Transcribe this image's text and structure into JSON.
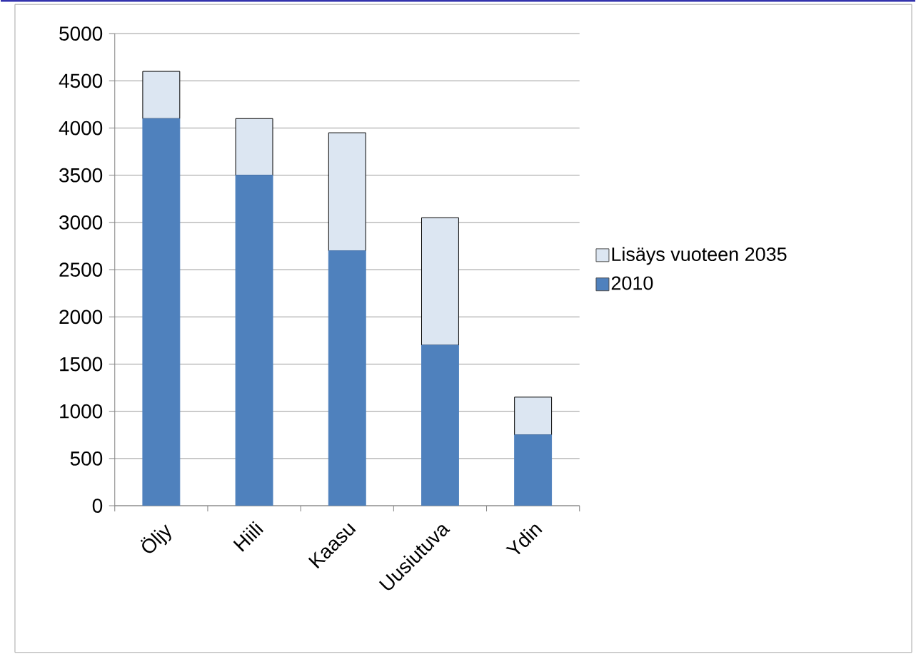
{
  "chart_data": {
    "type": "bar",
    "stacked": true,
    "categories": [
      "Öljy",
      "Hiili",
      "Kaasu",
      "Uusiutuva",
      "Ydin"
    ],
    "series": [
      {
        "name": "2010",
        "color": "#4f81bd",
        "values": [
          4100,
          3500,
          2700,
          1700,
          750
        ]
      },
      {
        "name": "Lisäys vuoteen  2035",
        "color": "#dce6f2",
        "values": [
          500,
          600,
          1250,
          1350,
          400
        ]
      }
    ],
    "ylim": [
      0,
      5000
    ],
    "yticks": [
      0,
      500,
      1000,
      1500,
      2000,
      2500,
      3000,
      3500,
      4000,
      4500,
      5000
    ],
    "grid": "y",
    "legend": "right"
  }
}
